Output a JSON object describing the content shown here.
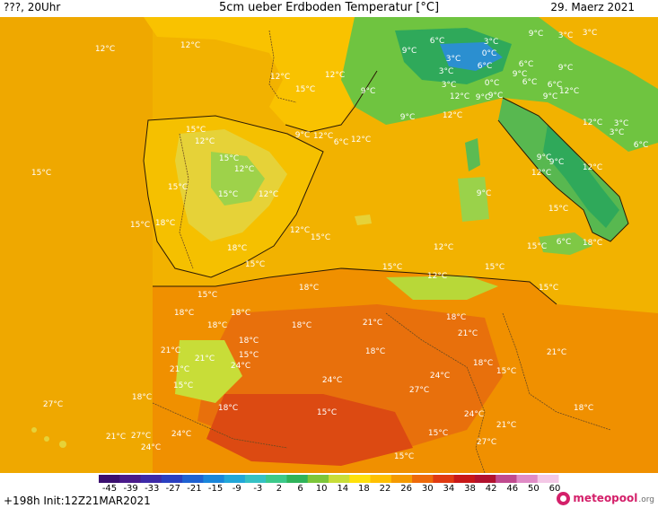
{
  "header": {
    "left": "???, 20Uhr",
    "title": "5cm ueber Erdboden Temperatur [°C]",
    "date": "29. Maerz 2021"
  },
  "map": {
    "region": "Western Mediterranean, Iberia, North Africa",
    "labels": [
      "12°C",
      "12°C",
      "12°C",
      "12°C",
      "15°C",
      "9°C",
      "9°C",
      "6°C",
      "3°C",
      "9°C",
      "3°C",
      "0°C",
      "3°C",
      "6°C",
      "3°C",
      "6°C",
      "9°C",
      "3°C",
      "0°C",
      "6°C",
      "3°C",
      "9°C",
      "6°C",
      "9°C",
      "12°C",
      "9°C",
      "12°C",
      "9°C",
      "9°C",
      "12°C",
      "12°C",
      "3°C",
      "3°C",
      "6°C",
      "15°C",
      "12°C",
      "9°C",
      "12°C",
      "6°C",
      "12°C",
      "15°C",
      "15°C",
      "15°C",
      "9°C",
      "9°C",
      "12°C",
      "12°C",
      "12°C",
      "12°C",
      "9°C",
      "18°C",
      "15°C",
      "15°C",
      "15°C",
      "12°C",
      "15°C",
      "18°C",
      "15°C",
      "15°C",
      "6°C",
      "12°C",
      "15°C",
      "15°C",
      "18°C",
      "12°C",
      "15°C",
      "18°C",
      "15°C",
      "18°C",
      "18°C",
      "18°C",
      "18°C",
      "21°C",
      "18°C",
      "21°C",
      "21°C",
      "18°C",
      "21°C",
      "18°C",
      "15°C",
      "21°C",
      "24°C",
      "24°C",
      "15°C",
      "18°C",
      "15°C",
      "21°C",
      "24°C",
      "18°C",
      "27°C",
      "18°C",
      "27°C",
      "15°C",
      "18°C",
      "21°C",
      "27°C",
      "24°C",
      "24°C",
      "15°C",
      "21°C",
      "27°C",
      "24°C",
      "15°C"
    ],
    "colors": {
      "cold_green": "#2fb35a",
      "mild_green": "#9ed24a",
      "yellow": "#ffd000",
      "orange": "#f5a300",
      "dark_orange": "#e8730c",
      "red": "#dc3d10",
      "sea": "#f0b400",
      "atlantic": "#f2b800"
    }
  },
  "legend": {
    "ticks": [
      "-45",
      "-39",
      "-33",
      "-27",
      "-21",
      "-15",
      "-9",
      "-3",
      "2",
      "6",
      "10",
      "14",
      "18",
      "22",
      "26",
      "30",
      "34",
      "38",
      "42",
      "46",
      "50",
      "60"
    ],
    "colors": [
      "#3b0f6f",
      "#4a1a8a",
      "#3d2aa8",
      "#2a3fc0",
      "#1f62d2",
      "#1a86da",
      "#22a7d8",
      "#35c1c4",
      "#3cc98a",
      "#2fb35a",
      "#7cc63a",
      "#c8dd38",
      "#ffe10a",
      "#ffc000",
      "#f59a00",
      "#ee6a0a",
      "#e03a12",
      "#c81818",
      "#b2122e",
      "#c04a8e",
      "#e08bc6",
      "#f4c8e6"
    ]
  },
  "footer": {
    "init": "+198h Init:12Z21MAR2021",
    "logo_name": "meteopool",
    "logo_tld": ".org"
  }
}
